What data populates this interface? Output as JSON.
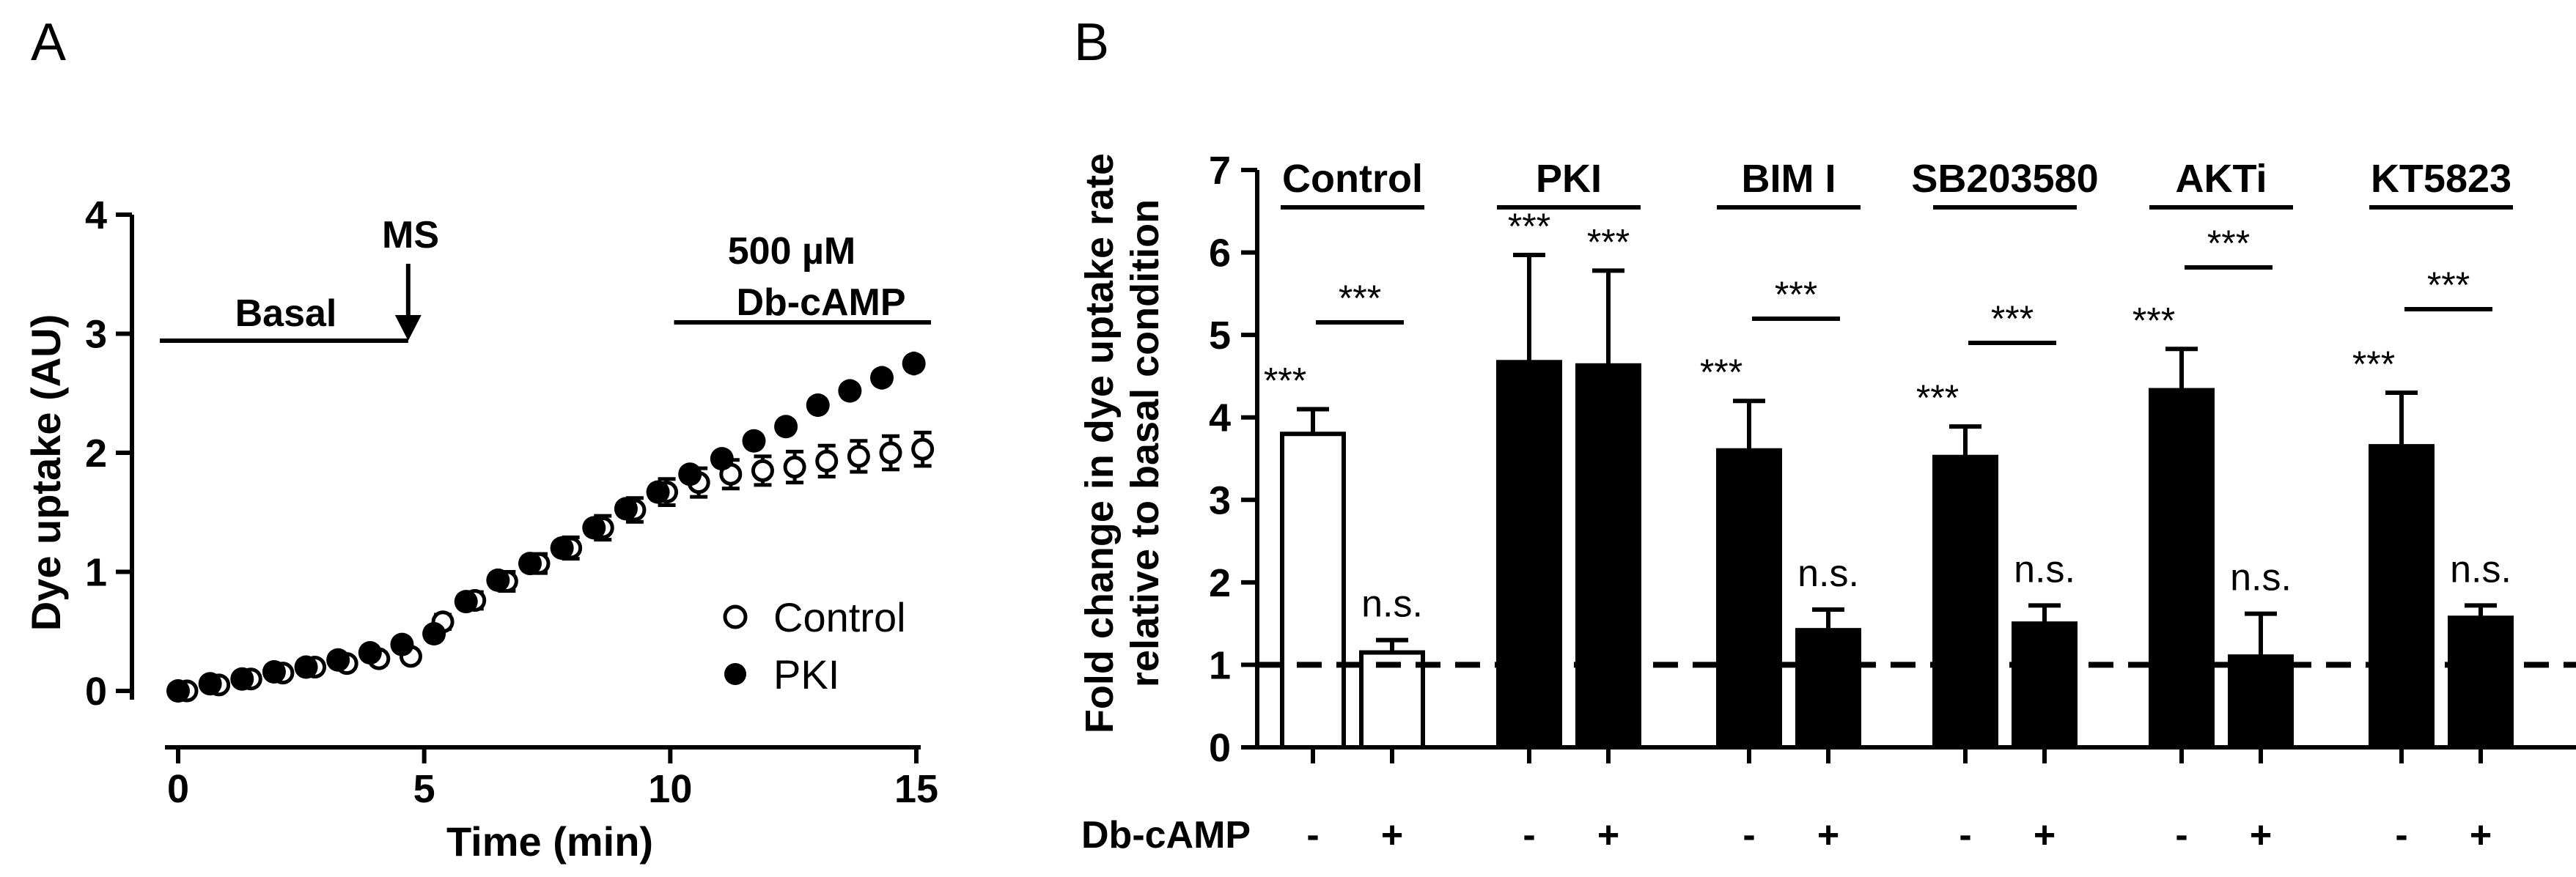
{
  "panels": {
    "a_label": "A",
    "b_label": "B"
  },
  "chart_data": [
    {
      "type": "scatter",
      "panel": "A",
      "xlabel": "Time (min)",
      "ylabel": "Dye uptake (AU)",
      "xlim": [
        0,
        15
      ],
      "ylim": [
        0,
        4
      ],
      "xticks": [
        "0",
        "5",
        "10",
        "15"
      ],
      "yticks": [
        "0",
        "1",
        "2",
        "3",
        "4"
      ],
      "legend_position": "bottom-right",
      "series": [
        {
          "name": "Control",
          "marker": "open-circle",
          "x": [
            0,
            0.65,
            1.3,
            1.95,
            2.6,
            3.25,
            3.9,
            4.55,
            5.2,
            5.85,
            6.5,
            7.15,
            7.8,
            8.45,
            9.1,
            9.75,
            10.4,
            11.05,
            11.7,
            12.35,
            13.0,
            13.65,
            14.3,
            14.95
          ],
          "y": [
            0,
            0.05,
            0.1,
            0.15,
            0.2,
            0.23,
            0.27,
            0.29,
            0.58,
            0.76,
            0.92,
            1.07,
            1.2,
            1.37,
            1.52,
            1.67,
            1.75,
            1.82,
            1.85,
            1.88,
            1.93,
            1.97,
            2.0,
            2.03
          ],
          "err": [
            0,
            0.02,
            0.03,
            0.03,
            0.04,
            0.04,
            0.05,
            0.05,
            0.06,
            0.07,
            0.08,
            0.08,
            0.09,
            0.1,
            0.1,
            0.11,
            0.12,
            0.12,
            0.12,
            0.13,
            0.13,
            0.13,
            0.14,
            0.14
          ]
        },
        {
          "name": "PKI",
          "marker": "filled-circle",
          "x": [
            0,
            0.65,
            1.3,
            1.95,
            2.6,
            3.25,
            3.9,
            4.55,
            5.2,
            5.85,
            6.5,
            7.15,
            7.8,
            8.45,
            9.1,
            9.75,
            10.4,
            11.05,
            11.7,
            12.35,
            13.0,
            13.65,
            14.3,
            14.95
          ],
          "y": [
            0,
            0.06,
            0.1,
            0.16,
            0.2,
            0.26,
            0.32,
            0.39,
            0.48,
            0.75,
            0.93,
            1.07,
            1.2,
            1.37,
            1.53,
            1.67,
            1.82,
            1.95,
            2.1,
            2.22,
            2.4,
            2.52,
            2.63,
            2.75
          ]
        }
      ],
      "annotations": {
        "basal": "Basal",
        "ms": "MS",
        "dbcamp_line1": "500 µM",
        "dbcamp_line2": "Db-cAMP",
        "basal_range": [
          0,
          4.6
        ],
        "ms_time": 4.6,
        "dbcamp_range": [
          10.3,
          15
        ]
      }
    },
    {
      "type": "bar",
      "panel": "B",
      "ylabel_line1": "Fold change in dye uptake rate",
      "ylabel_line2": "relative to basal condition",
      "ylim": [
        0,
        7
      ],
      "yticks": [
        "0",
        "1",
        "2",
        "3",
        "4",
        "5",
        "6",
        "7"
      ],
      "baseline": 1,
      "xrow_label": "Db-cAMP",
      "groups": [
        {
          "name": "Control",
          "fill": "open",
          "bars": [
            {
              "dbcamp": "-",
              "value": 3.8,
              "err": 0.3,
              "sig": "***"
            },
            {
              "dbcamp": "+",
              "value": 1.15,
              "err": 0.15,
              "sig": "n.s."
            }
          ],
          "comparison": "***"
        },
        {
          "name": "PKI",
          "fill": "filled",
          "bars": [
            {
              "dbcamp": "-",
              "value": 4.67,
              "err": 1.3,
              "sig": "***"
            },
            {
              "dbcamp": "+",
              "value": 4.63,
              "err": 1.15,
              "sig": "***"
            }
          ],
          "comparison": ""
        },
        {
          "name": "BIM I",
          "fill": "filled",
          "bars": [
            {
              "dbcamp": "-",
              "value": 3.6,
              "err": 0.6,
              "sig": "***"
            },
            {
              "dbcamp": "+",
              "value": 1.42,
              "err": 0.25,
              "sig": "n.s."
            }
          ],
          "comparison": "***"
        },
        {
          "name": "SB203580",
          "fill": "filled",
          "bars": [
            {
              "dbcamp": "-",
              "value": 3.52,
              "err": 0.37,
              "sig": "***"
            },
            {
              "dbcamp": "+",
              "value": 1.5,
              "err": 0.22,
              "sig": "n.s."
            }
          ],
          "comparison": "***"
        },
        {
          "name": "AKTi",
          "fill": "filled",
          "bars": [
            {
              "dbcamp": "-",
              "value": 4.33,
              "err": 0.5,
              "sig": "***"
            },
            {
              "dbcamp": "+",
              "value": 1.1,
              "err": 0.52,
              "sig": "n.s."
            }
          ],
          "comparison": "***"
        },
        {
          "name": "KT5823",
          "fill": "filled",
          "bars": [
            {
              "dbcamp": "-",
              "value": 3.65,
              "err": 0.65,
              "sig": "***"
            },
            {
              "dbcamp": "+",
              "value": 1.57,
              "err": 0.15,
              "sig": "n.s."
            }
          ],
          "comparison": "***"
        }
      ]
    }
  ]
}
